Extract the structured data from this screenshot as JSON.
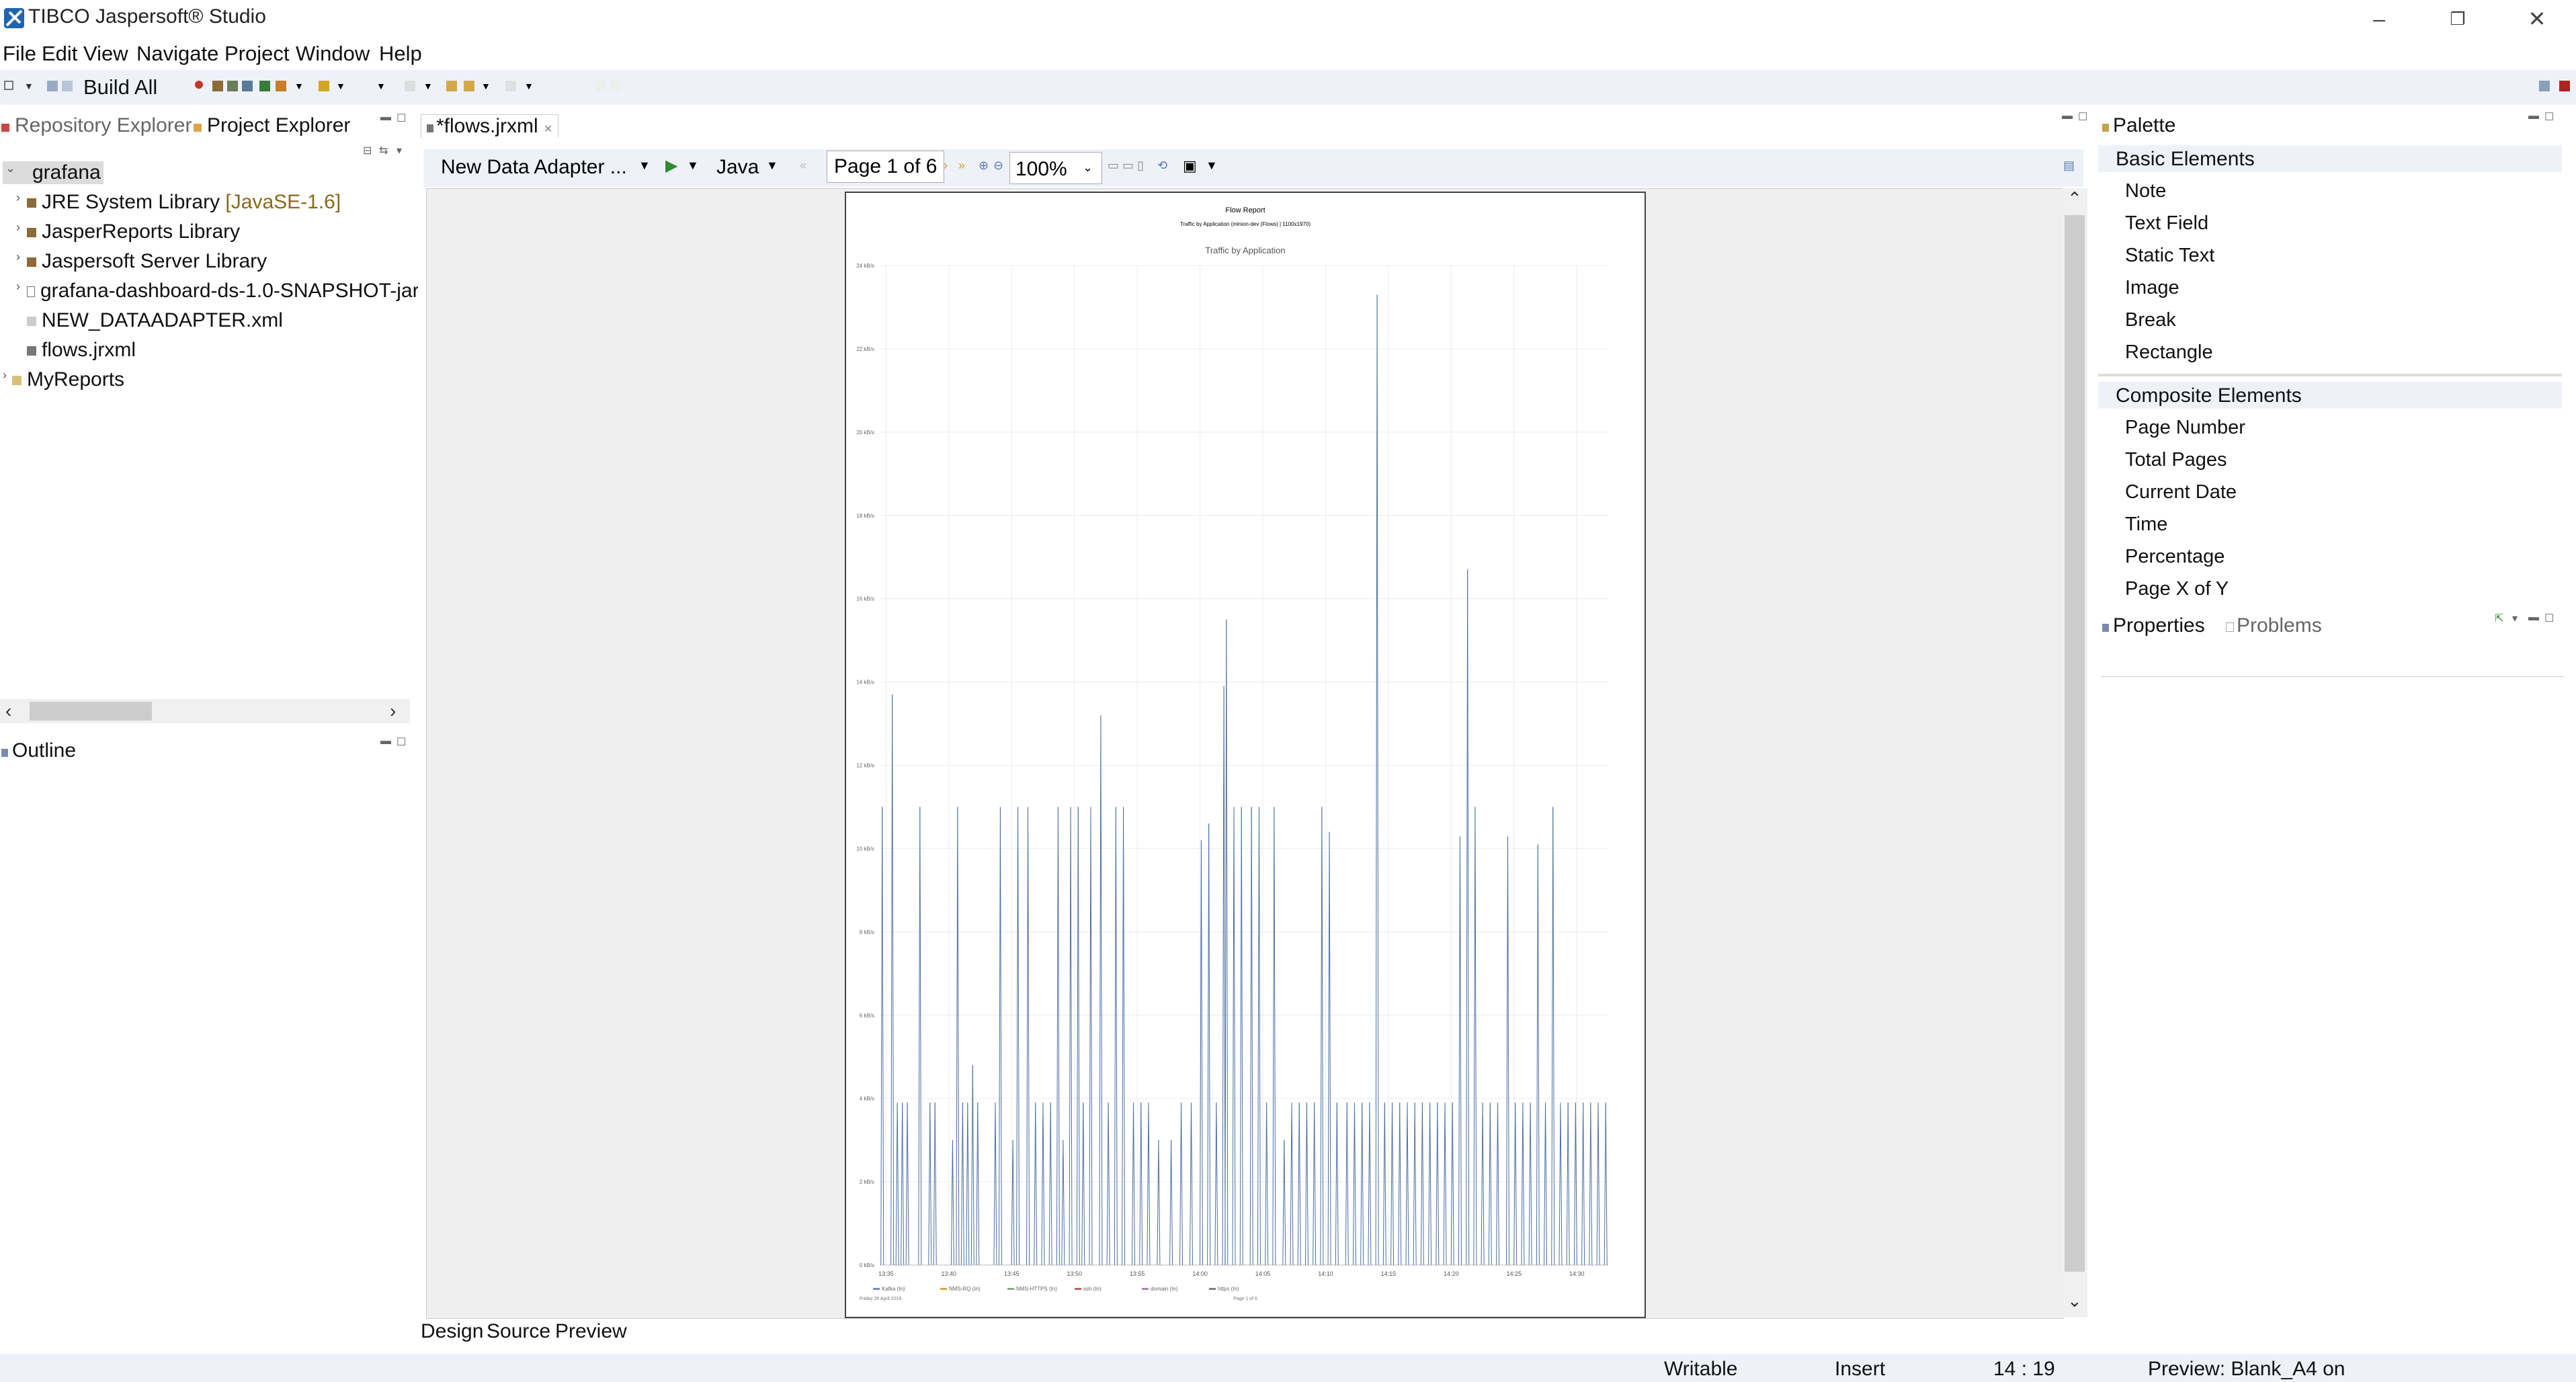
{
  "window": {
    "title": "TIBCO Jaspersoft® Studio"
  },
  "menu": [
    "File",
    "Edit",
    "View",
    "Navigate",
    "Project",
    "Window",
    "Help"
  ],
  "toolbar": {
    "build_all": "Build All"
  },
  "left_panel": {
    "tabs": [
      "Repository Explorer",
      "Project Explorer"
    ],
    "tree": {
      "project": "grafana",
      "children": [
        {
          "label": "JRE System Library",
          "decoration": "[JavaSE-1.6]"
        },
        {
          "label": "JasperReports Library"
        },
        {
          "label": "Jaspersoft Server Library"
        },
        {
          "label": "grafana-dashboard-ds-1.0-SNAPSHOT-jar"
        },
        {
          "label": "NEW_DATAADAPTER.xml"
        },
        {
          "label": "flows.jrxml"
        }
      ],
      "other": "MyReports"
    },
    "outline_tab": "Outline"
  },
  "editor": {
    "tab": "*flows.jrxml",
    "data_adapter": "New Data Adapter ...",
    "language": "Java",
    "page_indicator": "Page 1 of 6",
    "zoom": "100%",
    "bottom_tabs": [
      "Design",
      "Source",
      "Preview"
    ]
  },
  "report": {
    "title": "Flow Report",
    "subtitle": "Traffic by Application (minion-dev (Flows) | 1100x1970)",
    "footer_left": "Friday 26 April 2019",
    "footer_right": "Page 1 of 6"
  },
  "chart_data": {
    "type": "line",
    "title": "Traffic by Application",
    "ylabel": "kB/s",
    "ylim": [
      0,
      24
    ],
    "yticks": [
      "0 kB/s",
      "2 kB/s",
      "4 kB/s",
      "6 kB/s",
      "8 kB/s",
      "10 kB/s",
      "12 kB/s",
      "14 kB/s",
      "16 kB/s",
      "18 kB/s",
      "20 kB/s",
      "22 kB/s",
      "24 kB/s"
    ],
    "xticks": [
      "13:35",
      "13:40",
      "13:45",
      "13:50",
      "13:55",
      "14:00",
      "14:05",
      "14:10",
      "14:15",
      "14:20",
      "14:25",
      "14:30"
    ],
    "legend": [
      "Kafka (In)",
      "NMS-RQ (In)",
      "NMS-HTTPS (In)",
      "ssh (In)",
      "domain (In)",
      "https (In)"
    ],
    "series_color": "#4a6fa5",
    "spikes": [
      {
        "t": 0.2,
        "v": 11
      },
      {
        "t": 1.0,
        "v": 13.7
      },
      {
        "t": 1.4,
        "v": 3.9
      },
      {
        "t": 1.8,
        "v": 3.9
      },
      {
        "t": 2.2,
        "v": 3.9
      },
      {
        "t": 3.2,
        "v": 11
      },
      {
        "t": 4.0,
        "v": 3.9
      },
      {
        "t": 4.4,
        "v": 3.9
      },
      {
        "t": 5.8,
        "v": 3
      },
      {
        "t": 6.2,
        "v": 11
      },
      {
        "t": 6.6,
        "v": 3.9
      },
      {
        "t": 7.0,
        "v": 3.9
      },
      {
        "t": 7.4,
        "v": 4.8
      },
      {
        "t": 7.8,
        "v": 3.9
      },
      {
        "t": 9.2,
        "v": 3.9
      },
      {
        "t": 9.6,
        "v": 11
      },
      {
        "t": 10.6,
        "v": 3
      },
      {
        "t": 11.0,
        "v": 11
      },
      {
        "t": 11.8,
        "v": 11
      },
      {
        "t": 12.4,
        "v": 3.9
      },
      {
        "t": 13.0,
        "v": 3.9
      },
      {
        "t": 13.6,
        "v": 3.9
      },
      {
        "t": 14.2,
        "v": 11
      },
      {
        "t": 14.6,
        "v": 3
      },
      {
        "t": 15.2,
        "v": 11
      },
      {
        "t": 15.8,
        "v": 11
      },
      {
        "t": 16.2,
        "v": 3.9
      },
      {
        "t": 16.8,
        "v": 11
      },
      {
        "t": 17.6,
        "v": 13.2
      },
      {
        "t": 18.2,
        "v": 3.9
      },
      {
        "t": 18.8,
        "v": 11
      },
      {
        "t": 19.4,
        "v": 11
      },
      {
        "t": 20.2,
        "v": 3.9
      },
      {
        "t": 20.8,
        "v": 3.9
      },
      {
        "t": 21.4,
        "v": 3.9
      },
      {
        "t": 22.2,
        "v": 3
      },
      {
        "t": 23.2,
        "v": 3
      },
      {
        "t": 24.0,
        "v": 3.9
      },
      {
        "t": 24.8,
        "v": 3.9
      },
      {
        "t": 25.6,
        "v": 10.2
      },
      {
        "t": 26.2,
        "v": 10.6
      },
      {
        "t": 26.8,
        "v": 3.9
      },
      {
        "t": 27.4,
        "v": 13.9
      },
      {
        "t": 27.6,
        "v": 15.5
      },
      {
        "t": 28.2,
        "v": 11
      },
      {
        "t": 28.8,
        "v": 11
      },
      {
        "t": 29.6,
        "v": 11
      },
      {
        "t": 30.2,
        "v": 11
      },
      {
        "t": 30.8,
        "v": 3.9
      },
      {
        "t": 31.4,
        "v": 11
      },
      {
        "t": 32.2,
        "v": 3
      },
      {
        "t": 32.8,
        "v": 3.9
      },
      {
        "t": 33.4,
        "v": 3.9
      },
      {
        "t": 34.0,
        "v": 3.9
      },
      {
        "t": 34.6,
        "v": 3.9
      },
      {
        "t": 35.2,
        "v": 11
      },
      {
        "t": 35.8,
        "v": 10.4
      },
      {
        "t": 36.4,
        "v": 3.9
      },
      {
        "t": 37.2,
        "v": 3.9
      },
      {
        "t": 37.8,
        "v": 3.9
      },
      {
        "t": 38.4,
        "v": 3.9
      },
      {
        "t": 39.0,
        "v": 3.9
      },
      {
        "t": 39.6,
        "v": 23.3
      },
      {
        "t": 40.2,
        "v": 3.9
      },
      {
        "t": 40.8,
        "v": 3.9
      },
      {
        "t": 41.4,
        "v": 3.9
      },
      {
        "t": 42.0,
        "v": 3.9
      },
      {
        "t": 42.6,
        "v": 3.9
      },
      {
        "t": 43.2,
        "v": 3.9
      },
      {
        "t": 43.8,
        "v": 3.9
      },
      {
        "t": 44.4,
        "v": 3.9
      },
      {
        "t": 45.0,
        "v": 3.9
      },
      {
        "t": 45.6,
        "v": 3.9
      },
      {
        "t": 46.2,
        "v": 10.3
      },
      {
        "t": 46.8,
        "v": 16.7
      },
      {
        "t": 47.4,
        "v": 11
      },
      {
        "t": 48.0,
        "v": 3.9
      },
      {
        "t": 48.6,
        "v": 3.9
      },
      {
        "t": 49.2,
        "v": 3.9
      },
      {
        "t": 50.0,
        "v": 10.3
      },
      {
        "t": 50.6,
        "v": 3.9
      },
      {
        "t": 51.2,
        "v": 3.9
      },
      {
        "t": 51.8,
        "v": 3.9
      },
      {
        "t": 52.4,
        "v": 10.1
      },
      {
        "t": 53.0,
        "v": 3.9
      },
      {
        "t": 53.6,
        "v": 11
      },
      {
        "t": 54.2,
        "v": 3.9
      },
      {
        "t": 54.8,
        "v": 3.9
      },
      {
        "t": 55.4,
        "v": 3.9
      },
      {
        "t": 56.0,
        "v": 3.9
      },
      {
        "t": 56.6,
        "v": 3.9
      },
      {
        "t": 57.2,
        "v": 3.9
      },
      {
        "t": 57.8,
        "v": 3.9
      }
    ],
    "x_range_minutes": [
      0,
      58
    ]
  },
  "palette": {
    "title": "Palette",
    "basic_heading": "Basic Elements",
    "basic": [
      "Note",
      "Text Field",
      "Static Text",
      "Image",
      "Break",
      "Rectangle"
    ],
    "composite_heading": "Composite Elements",
    "composite": [
      "Page Number",
      "Total Pages",
      "Current Date",
      "Time",
      "Percentage",
      "Page X of Y"
    ]
  },
  "properties": {
    "tabs": [
      "Properties",
      "Problems"
    ]
  },
  "status": {
    "mode": "Writable",
    "insert": "Insert",
    "position": "14 : 19",
    "preview": "Preview: Blank_A4 on"
  }
}
